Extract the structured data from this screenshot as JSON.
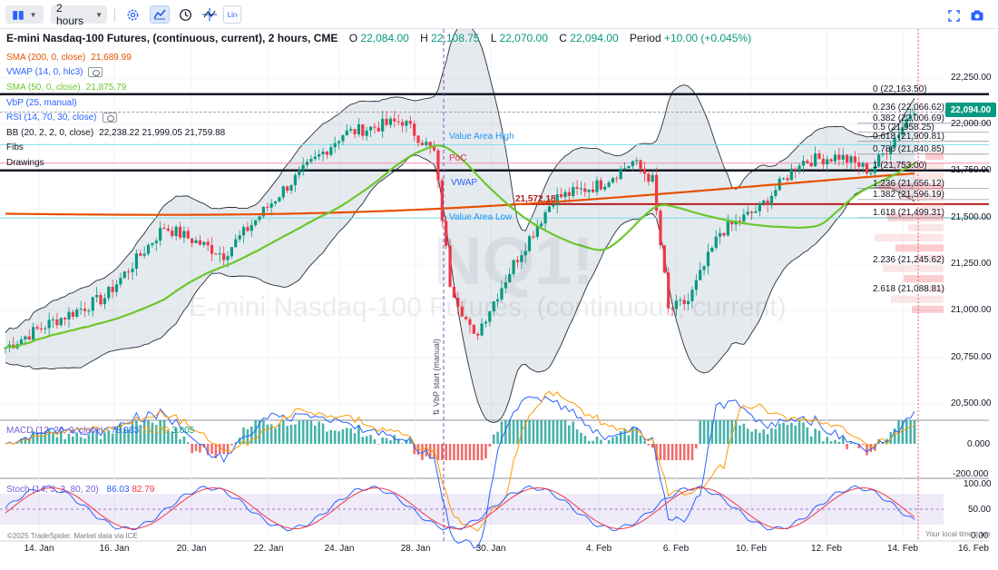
{
  "toolbar": {
    "chart_type_icon": "candles-icon",
    "interval": "2 hours",
    "settings_icon": "gear-icon",
    "indicator_icon": "line-indicator-icon",
    "clock_icon": "clock-icon",
    "crosshair_icon": "crosshair-icon",
    "log_label": "Lin",
    "fullscreen_icon": "fullscreen-icon",
    "snapshot_icon": "camera-icon"
  },
  "symbol": {
    "title": "E-mini Nasdaq-100 Futures, (continuous, current), 2 hours, CME",
    "o_label": "O",
    "o": "22,084.00",
    "h_label": "H",
    "h": "22,108.75",
    "l_label": "L",
    "l": "22,070.00",
    "c_label": "C",
    "c": "22,094.00",
    "period_label": "Period",
    "period": "+10.00 (+0.045%)",
    "watermark_symbol": "NQ1!",
    "watermark_name": "E-mini Nasdaq-100 Futures, (continuous, current)"
  },
  "indicators": [
    {
      "name": "SMA (200, 0, close)",
      "value": "21,689.99",
      "color": "#e65100",
      "eye": false
    },
    {
      "name": "VWAP (14, 0, hlc3)",
      "value": "",
      "color": "#2962ff",
      "eye": true
    },
    {
      "name": "SMA (50, 0, close)",
      "value": "21,875.79",
      "color": "#6bc72b",
      "eye": false
    },
    {
      "name": "VbP (25, manual)",
      "value": "",
      "color": "#2962ff",
      "eye": false
    },
    {
      "name": "RSI (14, 70, 30, close)",
      "value": "",
      "color": "#2962ff",
      "eye": true
    },
    {
      "name": "BB (20, 2, 2, 0, close)",
      "value": "22,238.22 21,999.05 21,759.88",
      "color": "#131722",
      "eye": false
    },
    {
      "name": "Fibs",
      "value": "",
      "color": "#131722",
      "eye": false
    },
    {
      "name": "Drawings",
      "value": "",
      "color": "#131722",
      "eye": false
    }
  ],
  "price_axis": {
    "ticks": [
      "22,250.00",
      "22,000.00",
      "21,750.00",
      "21,500.00",
      "21,250.00",
      "21,000.00",
      "20,750.00",
      "20,500.00"
    ],
    "last_price": "22,094.00"
  },
  "fib_levels": [
    {
      "label": "0 (22,163.50)"
    },
    {
      "label": "0.236 (22,066.62)"
    },
    {
      "label": "0.382 (22,006.69)"
    },
    {
      "label": "0.5 (21,958.25)"
    },
    {
      "label": "0.618 (21,909.81)"
    },
    {
      "label": "0.786 (21,840.85)"
    },
    {
      "label": "1 (21,753.00)"
    },
    {
      "label": "1.236 (21,656.12)"
    },
    {
      "label": "1.382 (21,596.19)"
    },
    {
      "label": "1.618 (21,499.31)"
    },
    {
      "label": "2.236 (21,245.62)"
    },
    {
      "label": "2.618 (21,088.81)"
    }
  ],
  "chart_notes": {
    "value_area_high": "Value Area High",
    "poc": "PoC",
    "vwap": "VWAP",
    "value_area_low": "Value Area Low",
    "level_price": "21,572.18",
    "vbp_start": "⇅ VbP start (manual)"
  },
  "macd": {
    "name": "MACD (12, 26, 9, close)",
    "v1": "78.983",
    "v2": "75.179",
    "v3": "3.805",
    "ticks": [
      "0.000",
      "-200.000"
    ]
  },
  "stoch": {
    "name": "Stoch (14, 3, 3, 80, 20)",
    "v1": "86.03",
    "v2": "82.79",
    "ticks": [
      "100.00",
      "50.00",
      "0.00"
    ]
  },
  "time_axis": [
    "14. Jan",
    "16. Jan",
    "20. Jan",
    "22. Jan",
    "24. Jan",
    "28. Jan",
    "30. Jan",
    "4. Feb",
    "6. Feb",
    "10. Feb",
    "12. Feb",
    "14. Feb",
    "16. Feb"
  ],
  "footer": {
    "attribution": "©2025 TradeSpider. Market data via ICE",
    "local_time": "Your local time zone"
  },
  "colors": {
    "up": "#089981",
    "down": "#f23645",
    "sma200": "#e65100",
    "sma50": "#6bc72b",
    "bb": "#2a2e39",
    "fib_line": "#2a2e39",
    "macd": "#2962ff",
    "signal": "#ff9800",
    "stoch_k": "#2962ff",
    "stoch_d": "#f23645"
  }
}
